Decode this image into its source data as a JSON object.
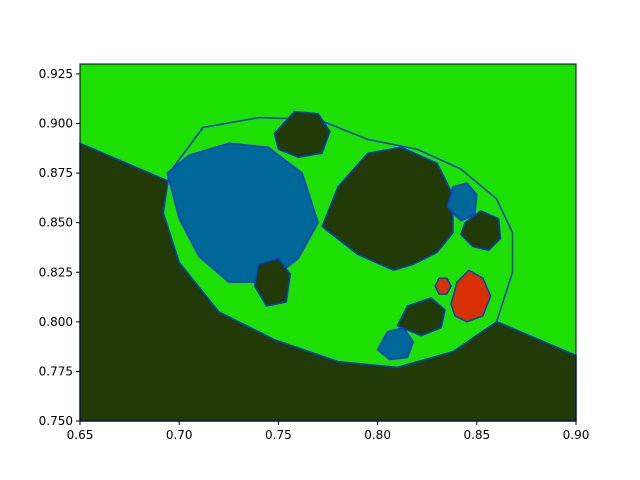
{
  "chart_data": {
    "type": "heatmap",
    "title": "",
    "xlabel": "",
    "ylabel": "",
    "xlim": [
      0.65,
      0.9
    ],
    "ylim": [
      0.75,
      0.93
    ],
    "x_ticks": [
      "0.65",
      "0.70",
      "0.75",
      "0.80",
      "0.85",
      "0.90"
    ],
    "x_tick_values": [
      0.65,
      0.7,
      0.75,
      0.8,
      0.85,
      0.9
    ],
    "y_ticks": [
      "0.750",
      "0.775",
      "0.800",
      "0.825",
      "0.850",
      "0.875",
      "0.900",
      "0.925"
    ],
    "y_tick_values": [
      0.75,
      0.775,
      0.8,
      0.825,
      0.85,
      0.875,
      0.9,
      0.925
    ],
    "grid": false,
    "colors": {
      "background_region": "#1ee000",
      "dark_region": "#213a06",
      "blue_region": "#006898",
      "red_region": "#d83000",
      "boundary": "#0a3cd0"
    },
    "regions": [
      {
        "name": "dark-lower",
        "color": "dark_region",
        "points": [
          [
            0.65,
            0.75
          ],
          [
            0.9,
            0.75
          ],
          [
            0.9,
            0.783
          ],
          [
            0.65,
            0.89
          ]
        ]
      },
      {
        "name": "green-outer-bulb",
        "color": "background_region",
        "points": [
          [
            0.695,
            0.875
          ],
          [
            0.712,
            0.898
          ],
          [
            0.74,
            0.903
          ],
          [
            0.77,
            0.902
          ],
          [
            0.795,
            0.892
          ],
          [
            0.82,
            0.887
          ],
          [
            0.842,
            0.877
          ],
          [
            0.86,
            0.862
          ],
          [
            0.868,
            0.845
          ],
          [
            0.868,
            0.825
          ],
          [
            0.86,
            0.8
          ],
          [
            0.838,
            0.785
          ],
          [
            0.81,
            0.777
          ],
          [
            0.78,
            0.78
          ],
          [
            0.748,
            0.791
          ],
          [
            0.72,
            0.805
          ],
          [
            0.7,
            0.83
          ],
          [
            0.692,
            0.855
          ]
        ]
      },
      {
        "name": "blue-main-bulb",
        "color": "blue_region",
        "points": [
          [
            0.694,
            0.875
          ],
          [
            0.705,
            0.884
          ],
          [
            0.725,
            0.89
          ],
          [
            0.745,
            0.888
          ],
          [
            0.762,
            0.875
          ],
          [
            0.77,
            0.85
          ],
          [
            0.76,
            0.832
          ],
          [
            0.745,
            0.82
          ],
          [
            0.725,
            0.82
          ],
          [
            0.71,
            0.833
          ],
          [
            0.7,
            0.852
          ]
        ]
      },
      {
        "name": "dark-upper-bulb",
        "color": "dark_region",
        "points": [
          [
            0.772,
            0.848
          ],
          [
            0.78,
            0.868
          ],
          [
            0.795,
            0.885
          ],
          [
            0.812,
            0.888
          ],
          [
            0.83,
            0.88
          ],
          [
            0.838,
            0.864
          ],
          [
            0.838,
            0.845
          ],
          [
            0.83,
            0.835
          ],
          [
            0.818,
            0.829
          ],
          [
            0.808,
            0.826
          ],
          [
            0.79,
            0.834
          ]
        ]
      },
      {
        "name": "dark-top-bubble",
        "color": "dark_region",
        "points": [
          [
            0.748,
            0.895
          ],
          [
            0.758,
            0.906
          ],
          [
            0.77,
            0.905
          ],
          [
            0.776,
            0.896
          ],
          [
            0.772,
            0.885
          ],
          [
            0.76,
            0.883
          ],
          [
            0.75,
            0.887
          ]
        ]
      },
      {
        "name": "dark-right-bubble",
        "color": "dark_region",
        "points": [
          [
            0.844,
            0.85
          ],
          [
            0.852,
            0.856
          ],
          [
            0.861,
            0.852
          ],
          [
            0.862,
            0.842
          ],
          [
            0.856,
            0.836
          ],
          [
            0.848,
            0.838
          ],
          [
            0.842,
            0.844
          ]
        ]
      },
      {
        "name": "dark-bottom-bubble",
        "color": "dark_region",
        "points": [
          [
            0.81,
            0.798
          ],
          [
            0.815,
            0.808
          ],
          [
            0.827,
            0.812
          ],
          [
            0.834,
            0.806
          ],
          [
            0.832,
            0.797
          ],
          [
            0.822,
            0.793
          ]
        ]
      },
      {
        "name": "dark-left-bubble",
        "color": "dark_region",
        "points": [
          [
            0.738,
            0.818
          ],
          [
            0.74,
            0.829
          ],
          [
            0.75,
            0.832
          ],
          [
            0.756,
            0.824
          ],
          [
            0.754,
            0.81
          ],
          [
            0.744,
            0.808
          ]
        ]
      },
      {
        "name": "blue-right-bubble",
        "color": "blue_region",
        "points": [
          [
            0.835,
            0.858
          ],
          [
            0.838,
            0.868
          ],
          [
            0.845,
            0.87
          ],
          [
            0.85,
            0.864
          ],
          [
            0.849,
            0.854
          ],
          [
            0.842,
            0.851
          ]
        ]
      },
      {
        "name": "blue-bottom-bubble",
        "color": "blue_region",
        "points": [
          [
            0.8,
            0.786
          ],
          [
            0.805,
            0.795
          ],
          [
            0.813,
            0.797
          ],
          [
            0.818,
            0.79
          ],
          [
            0.815,
            0.782
          ],
          [
            0.806,
            0.781
          ]
        ]
      },
      {
        "name": "red-bulb",
        "color": "red_region",
        "points": [
          [
            0.837,
            0.809
          ],
          [
            0.84,
            0.82
          ],
          [
            0.846,
            0.826
          ],
          [
            0.853,
            0.822
          ],
          [
            0.857,
            0.813
          ],
          [
            0.853,
            0.803
          ],
          [
            0.845,
            0.8
          ],
          [
            0.839,
            0.803
          ]
        ]
      },
      {
        "name": "red-small-bulb",
        "color": "red_region",
        "points": [
          [
            0.829,
            0.818
          ],
          [
            0.831,
            0.822
          ],
          [
            0.835,
            0.822
          ],
          [
            0.837,
            0.818
          ],
          [
            0.835,
            0.814
          ],
          [
            0.831,
            0.814
          ]
        ]
      }
    ]
  }
}
